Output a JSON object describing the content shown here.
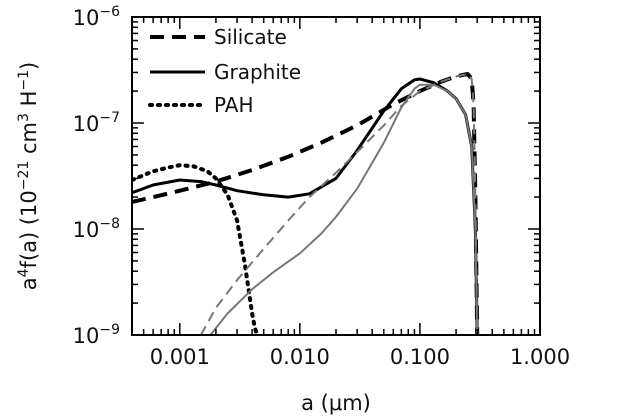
{
  "chart_data": {
    "type": "line",
    "title": "",
    "xlabel": "a (μm)",
    "ylabel_parts": {
      "a": "a",
      "sup4": "4",
      "fa": "f(a)  (10",
      "sup21": "−21",
      "cm": " cm",
      "sup3": "3",
      "H": " H",
      "sup1": "−1",
      "close": ")"
    },
    "x_scale": "log",
    "y_scale": "log",
    "xlim": [
      0.0004,
      1.0
    ],
    "ylim": [
      1e-09,
      1e-06
    ],
    "x_ticks": [
      0.001,
      0.01,
      0.1,
      1.0
    ],
    "x_tick_labels": [
      "0.001",
      "0.010",
      "0.100",
      "1.000"
    ],
    "y_ticks": [
      1e-09,
      1e-08,
      1e-07,
      1e-06
    ],
    "y_tick_labels": [
      {
        "base": "10",
        "exp": "−9"
      },
      {
        "base": "10",
        "exp": "−8"
      },
      {
        "base": "10",
        "exp": "−7"
      },
      {
        "base": "10",
        "exp": "−6"
      }
    ],
    "legend_position": "top-left",
    "grid": false,
    "series": [
      {
        "name": "Silicate",
        "style": "dashed",
        "color": "#000000",
        "width": 4,
        "x": [
          0.0004,
          0.0006,
          0.001,
          0.002,
          0.004,
          0.008,
          0.015,
          0.03,
          0.06,
          0.1,
          0.15,
          0.2,
          0.25,
          0.27,
          0.28,
          0.29,
          0.3
        ],
        "y": [
          1.8e-08,
          2e-08,
          2.3e-08,
          2.8e-08,
          3.6e-08,
          4.8e-08,
          6.5e-08,
          9.5e-08,
          1.5e-07,
          2e-07,
          2.45e-07,
          2.75e-07,
          2.9e-07,
          2.6e-07,
          1.5e-07,
          2e-08,
          1e-09
        ]
      },
      {
        "name": "Graphite",
        "style": "solid",
        "color": "#000000",
        "width": 3,
        "x": [
          0.0004,
          0.0006,
          0.001,
          0.0015,
          0.002,
          0.003,
          0.005,
          0.008,
          0.012,
          0.02,
          0.03,
          0.05,
          0.07,
          0.09,
          0.1,
          0.13,
          0.17,
          0.2,
          0.24,
          0.27,
          0.29,
          0.3
        ],
        "y": [
          2.2e-08,
          2.6e-08,
          2.9e-08,
          2.8e-08,
          2.6e-08,
          2.3e-08,
          2.1e-08,
          2e-08,
          2.15e-08,
          3e-08,
          5.5e-08,
          1.3e-07,
          2.1e-07,
          2.55e-07,
          2.6e-07,
          2.4e-07,
          2e-07,
          1.7e-07,
          1.2e-07,
          6e-08,
          1e-08,
          1e-09
        ]
      },
      {
        "name": "PAH",
        "style": "dotted",
        "color": "#000000",
        "width": 4,
        "x": [
          0.0004,
          0.0006,
          0.0008,
          0.001,
          0.0013,
          0.0017,
          0.002,
          0.0025,
          0.003,
          0.0035,
          0.004,
          0.0042,
          0.0044
        ],
        "y": [
          2.9e-08,
          3.5e-08,
          3.8e-08,
          4e-08,
          3.9e-08,
          3.5e-08,
          3e-08,
          2.1e-08,
          1.2e-08,
          4.5e-09,
          1.6e-09,
          1.2e-09,
          1e-09
        ]
      },
      {
        "name": "",
        "style": "dashed-thin",
        "color": "#777777",
        "width": 2,
        "x": [
          0.0015,
          0.002,
          0.003,
          0.005,
          0.008,
          0.012,
          0.02,
          0.03,
          0.05,
          0.07,
          0.1,
          0.15,
          0.2,
          0.25,
          0.27,
          0.28,
          0.29,
          0.3
        ],
        "y": [
          1e-09,
          1.8e-09,
          3.3e-09,
          6.5e-09,
          1.2e-08,
          2e-08,
          3.4e-08,
          5.3e-08,
          9.5e-08,
          1.45e-07,
          2e-07,
          2.45e-07,
          2.75e-07,
          2.9e-07,
          2.6e-07,
          1.5e-07,
          2e-08,
          1e-09
        ]
      },
      {
        "name": "",
        "style": "solid-thin",
        "color": "#777777",
        "width": 2,
        "x": [
          0.0018,
          0.0025,
          0.004,
          0.006,
          0.01,
          0.015,
          0.02,
          0.03,
          0.05,
          0.07,
          0.09,
          0.1,
          0.13,
          0.17,
          0.2,
          0.24,
          0.27,
          0.29,
          0.3
        ],
        "y": [
          1e-09,
          1.6e-09,
          2.7e-09,
          3.9e-09,
          5.9e-09,
          9e-09,
          1.3e-08,
          2.4e-08,
          6.5e-08,
          1.4e-07,
          2.1e-07,
          2.3e-07,
          2.3e-07,
          2e-07,
          1.7e-07,
          1.2e-07,
          6e-08,
          1e-08,
          1e-09
        ]
      }
    ]
  }
}
